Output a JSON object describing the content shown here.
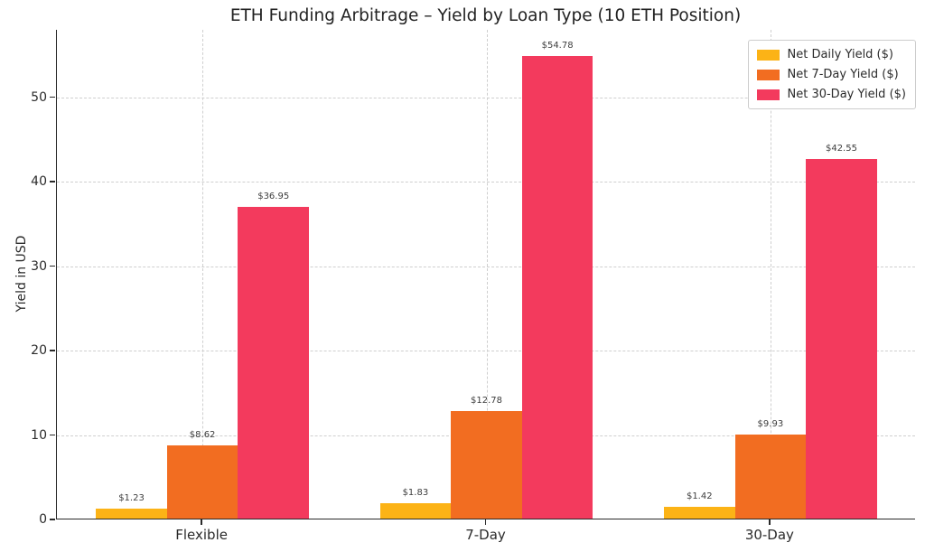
{
  "title": "ETH Funding Arbitrage – Yield by Loan Type (10 ETH Position)",
  "chart_data": {
    "type": "bar",
    "title": "ETH Funding Arbitrage – Yield by Loan Type (10 ETH Position)",
    "categories": [
      "Flexible",
      "7-Day",
      "30-Day"
    ],
    "series": [
      {
        "name": "Net Daily Yield ($)",
        "color": "#FCB316",
        "values": [
          1.23,
          1.83,
          1.42
        ],
        "labels": [
          "$1.23",
          "$1.83",
          "$1.42"
        ]
      },
      {
        "name": "Net 7-Day Yield ($)",
        "color": "#F26D21",
        "values": [
          8.62,
          12.78,
          9.93
        ],
        "labels": [
          "$8.62",
          "$12.78",
          "$9.93"
        ]
      },
      {
        "name": "Net 30-Day Yield ($)",
        "color": "#F33A5D",
        "values": [
          36.95,
          54.78,
          42.55
        ],
        "labels": [
          "$36.95",
          "$54.78",
          "$42.55"
        ]
      }
    ],
    "xlabel": "",
    "ylabel": "Yield in USD",
    "yticks": [
      0,
      10,
      20,
      30,
      40,
      50
    ],
    "ylim": [
      0,
      58
    ],
    "grid": "dashed-both-axes",
    "legend_position": "upper-right"
  },
  "colors": {
    "background": "#ffffff",
    "spine": "#2a2a2a",
    "grid": "#cfcfcf",
    "text": "#2b2b2b",
    "legend_border": "#cccccc"
  }
}
